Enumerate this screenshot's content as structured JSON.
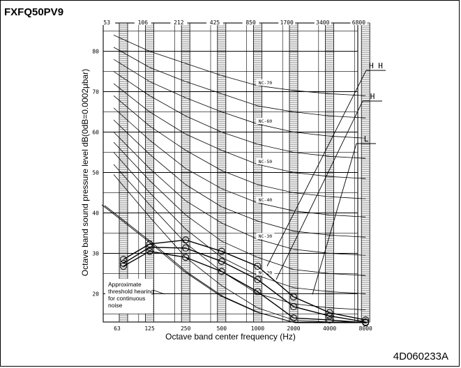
{
  "header": {
    "model": "FXFQ50PV9"
  },
  "footer": {
    "doc_id": "4D060233A"
  },
  "chart_data": {
    "type": "line",
    "xlabel": "Octave band center frequency (Hz)",
    "ylabel": "Octave band sound pressure level   dB(0dB=0.0002μbar)",
    "x_ticks": [
      "63",
      "125",
      "250",
      "500",
      "1000",
      "2000",
      "4000",
      "8000"
    ],
    "top_band_labels": [
      "53",
      "106",
      "212",
      "425",
      "850",
      "1700",
      "3400",
      "6800"
    ],
    "y_ticks": [
      20,
      30,
      40,
      50,
      60,
      70,
      80
    ],
    "ylim": [
      13,
      87
    ],
    "grid": true,
    "series": [
      {
        "name": "H H",
        "values": [
          28.5,
          32.3,
          33.3,
          30.5,
          26.8,
          19.2,
          15.3,
          13.5
        ]
      },
      {
        "name": "H",
        "values": [
          27.5,
          31.5,
          31.3,
          28.0,
          23.5,
          16.8,
          14.5,
          13.0
        ]
      },
      {
        "name": "L",
        "values": [
          26.8,
          30.5,
          29.0,
          25.5,
          20.5,
          14.0,
          13.5,
          12.8
        ]
      }
    ],
    "nc_curves": [
      {
        "name": "NC-70",
        "label": "NC-70",
        "values": [
          84,
          80,
          77,
          74,
          71.5,
          70.3,
          69.5,
          69
        ]
      },
      {
        "name": "NC-60",
        "label": "NC-60",
        "values": [
          78,
          72.5,
          68.5,
          65,
          62,
          60,
          59,
          58.5
        ]
      },
      {
        "name": "NC-50",
        "label": "NC-50",
        "values": [
          72,
          65,
          59.5,
          55.5,
          52,
          50,
          49,
          48.5
        ]
      },
      {
        "name": "NC-40",
        "label": "NC-40",
        "values": [
          66,
          58,
          51,
          46,
          42.5,
          40.5,
          39.5,
          39
        ]
      },
      {
        "name": "NC-30",
        "label": "NC-30",
        "values": [
          60,
          51,
          43,
          37.5,
          33.5,
          31,
          30,
          29.5
        ]
      },
      {
        "name": "NC-20",
        "label": "NC-20",
        "values": [
          55,
          45,
          36,
          29,
          24.5,
          21.5,
          20.5,
          20
        ]
      },
      {
        "name": "",
        "label": "",
        "values": [
          81,
          76,
          72.5,
          69.5,
          66.5,
          65,
          64,
          63.5
        ]
      },
      {
        "name": "",
        "label": "",
        "values": [
          75,
          69,
          64,
          60,
          57,
          55,
          54,
          53.5
        ]
      },
      {
        "name": "",
        "label": "",
        "values": [
          69,
          61.5,
          55.5,
          50.5,
          47,
          45,
          44,
          43.5
        ]
      },
      {
        "name": "",
        "label": "",
        "values": [
          63,
          54.5,
          47,
          41.5,
          38,
          35.5,
          34.5,
          34
        ]
      },
      {
        "name": "",
        "label": "",
        "values": [
          57.5,
          48,
          39.5,
          33,
          29,
          26,
          25,
          24.5
        ]
      },
      {
        "name": "",
        "label": "",
        "values": [
          52,
          42,
          32.5,
          25.5,
          20,
          17.5,
          16.5,
          16
        ]
      },
      {
        "name": "",
        "label": "",
        "values": [
          49.5,
          39,
          29,
          22,
          16.5,
          13.5,
          13,
          13
        ]
      }
    ],
    "threshold": {
      "label_lines": [
        "Approximate",
        "threshold hearing",
        "for continuous",
        "noise"
      ],
      "values": [
        40,
        33,
        25.5,
        19.5,
        15.5,
        13,
        13,
        13
      ]
    },
    "colors": {
      "ink": "#000000",
      "background": "#ffffff"
    }
  }
}
